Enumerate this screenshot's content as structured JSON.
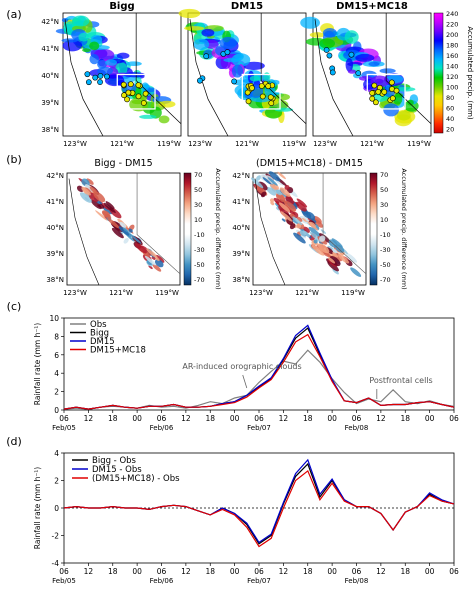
{
  "chart_data": [
    {
      "panel": "(a)",
      "type": "heatmap",
      "map_titles": [
        "Bigg",
        "DM15",
        "DM15+MC18"
      ],
      "lat_ticks": [
        "42°N",
        "41°N",
        "40°N",
        "39°N",
        "38°N"
      ],
      "lon_ticks": [
        "123°W",
        "121°W",
        "119°W"
      ],
      "colorbar": {
        "label": "Accumulated precip. (mm)",
        "ticks": [
          "240",
          "220",
          "200",
          "180",
          "160",
          "140",
          "120",
          "100",
          "80",
          "60",
          "40",
          "20"
        ],
        "colors": [
          "#ff00ff",
          "#c000ff",
          "#6a00ff",
          "#0000ff",
          "#0066ff",
          "#00b3ff",
          "#00e5c0",
          "#00c800",
          "#6ad000",
          "#e6e600",
          "#ffcc00",
          "#ff7f00",
          "#ff2a00",
          "#cc0000"
        ]
      }
    },
    {
      "panel": "(b)",
      "type": "heatmap",
      "map_titles": [
        "Bigg - DM15",
        "(DM15+MC18) - DM15"
      ],
      "lat_ticks": [
        "42°N",
        "41°N",
        "40°N",
        "39°N",
        "38°N"
      ],
      "lon_ticks": [
        "123°W",
        "121°W",
        "119°W"
      ],
      "colorbar": {
        "label": "Accumulated precip. difference (mm)",
        "ticks": [
          "70",
          "50",
          "30",
          "10",
          "-10",
          "-30",
          "-50",
          "-70"
        ],
        "colors": [
          "#67001f",
          "#b2182b",
          "#d6604d",
          "#f4a582",
          "#fddbc7",
          "#ffffff",
          "#ffffff",
          "#d1e5f0",
          "#92c5de",
          "#4393c3",
          "#2166ac",
          "#053061"
        ]
      }
    },
    {
      "panel": "(c)",
      "type": "line",
      "ylabel": "Rainfall rate (mm h⁻¹)",
      "ylim": [
        0,
        10
      ],
      "yticks": [
        "0",
        "2",
        "4",
        "6",
        "8",
        "10"
      ],
      "x_ticks": [
        "06",
        "12",
        "18",
        "00",
        "06",
        "12",
        "18",
        "00",
        "06",
        "12",
        "18",
        "00",
        "06",
        "12",
        "18",
        "00",
        "06"
      ],
      "x_dates": [
        "Feb/05",
        "Feb/06",
        "Feb/07",
        "Feb/08"
      ],
      "x": [
        0,
        3,
        6,
        9,
        12,
        15,
        18,
        21,
        24,
        27,
        30,
        33,
        36,
        39,
        42,
        45,
        48,
        51,
        54,
        57,
        60,
        63,
        66,
        69,
        72,
        75,
        78,
        81,
        84,
        87,
        90,
        93,
        96
      ],
      "series": [
        {
          "name": "Obs",
          "color": "#808080",
          "values": [
            0.1,
            0.2,
            0.1,
            0.3,
            0.4,
            0.3,
            0.2,
            0.5,
            0.3,
            0.4,
            0.2,
            0.5,
            0.9,
            0.7,
            1.3,
            1.6,
            3.0,
            4.2,
            5.3,
            5.0,
            6.5,
            5.2,
            3.4,
            1.9,
            0.7,
            1.2,
            0.9,
            2.2,
            0.9,
            0.7,
            1.0,
            0.6,
            0.4
          ]
        },
        {
          "name": "Bigg",
          "color": "#000000",
          "values": [
            0.1,
            0.3,
            0.1,
            0.3,
            0.5,
            0.3,
            0.2,
            0.4,
            0.4,
            0.6,
            0.3,
            0.3,
            0.4,
            0.7,
            0.9,
            1.6,
            2.5,
            3.4,
            5.5,
            7.8,
            8.9,
            6.0,
            3.2,
            1.0,
            0.8,
            1.3,
            0.5,
            0.6,
            0.6,
            0.8,
            0.9,
            0.6,
            0.3
          ]
        },
        {
          "name": "DM15",
          "color": "#0000cc",
          "values": [
            0.1,
            0.3,
            0.1,
            0.3,
            0.5,
            0.3,
            0.2,
            0.4,
            0.4,
            0.6,
            0.3,
            0.3,
            0.4,
            0.7,
            0.9,
            1.6,
            2.6,
            3.5,
            5.6,
            8.1,
            9.2,
            6.2,
            3.3,
            1.0,
            0.8,
            1.3,
            0.5,
            0.6,
            0.6,
            0.8,
            0.9,
            0.6,
            0.3
          ]
        },
        {
          "name": "DM15+MC18",
          "color": "#e00000",
          "values": [
            0.1,
            0.3,
            0.1,
            0.3,
            0.5,
            0.3,
            0.2,
            0.4,
            0.4,
            0.6,
            0.3,
            0.3,
            0.4,
            0.6,
            0.8,
            1.4,
            2.4,
            3.3,
            5.2,
            7.4,
            8.2,
            5.8,
            3.1,
            1.0,
            0.8,
            1.3,
            0.5,
            0.6,
            0.6,
            0.8,
            0.9,
            0.6,
            0.3
          ]
        }
      ],
      "annotations": [
        "AR-induced orographic clouds",
        "Postfrontal cells"
      ]
    },
    {
      "panel": "(d)",
      "type": "line",
      "ylabel": "Rainfall rate (mm h⁻¹)",
      "ylim": [
        -4,
        4
      ],
      "yticks": [
        "-4",
        "-2",
        "0",
        "2",
        "4"
      ],
      "x_ticks": [
        "06",
        "12",
        "18",
        "00",
        "06",
        "12",
        "18",
        "00",
        "06",
        "12",
        "18",
        "00",
        "06",
        "12",
        "18",
        "00",
        "06"
      ],
      "x_dates": [
        "Feb/05",
        "Feb/06",
        "Feb/07",
        "Feb/08"
      ],
      "x": [
        0,
        3,
        6,
        9,
        12,
        15,
        18,
        21,
        24,
        27,
        30,
        33,
        36,
        39,
        42,
        45,
        48,
        51,
        54,
        57,
        60,
        63,
        66,
        69,
        72,
        75,
        78,
        81,
        84,
        87,
        90,
        93,
        96
      ],
      "series": [
        {
          "name": "Bigg - Obs",
          "color": "#000000",
          "values": [
            0.0,
            0.1,
            0.0,
            0.0,
            0.1,
            0.0,
            0.0,
            -0.1,
            0.1,
            0.2,
            0.1,
            -0.2,
            -0.5,
            0.0,
            -0.4,
            -1.2,
            -2.6,
            -2.0,
            0.3,
            2.3,
            3.2,
            0.8,
            2.0,
            0.6,
            0.1,
            0.1,
            -0.4,
            -1.6,
            -0.3,
            0.1,
            1.0,
            0.5,
            0.3
          ]
        },
        {
          "name": "DM15 - Obs",
          "color": "#0000cc",
          "values": [
            0.0,
            0.1,
            0.0,
            0.0,
            0.1,
            0.0,
            0.0,
            -0.1,
            0.1,
            0.2,
            0.1,
            -0.2,
            -0.5,
            0.0,
            -0.4,
            -1.1,
            -2.5,
            -1.9,
            0.4,
            2.5,
            3.5,
            1.0,
            2.1,
            0.6,
            0.1,
            0.1,
            -0.4,
            -1.6,
            -0.3,
            0.1,
            1.1,
            0.6,
            0.3
          ]
        },
        {
          "name": "(DM15+MC18) - Obs",
          "color": "#e00000",
          "values": [
            0.0,
            0.1,
            0.0,
            0.0,
            0.1,
            0.0,
            0.0,
            -0.1,
            0.1,
            0.2,
            0.1,
            -0.2,
            -0.5,
            -0.1,
            -0.5,
            -1.4,
            -2.8,
            -2.2,
            0.0,
            2.0,
            2.7,
            0.6,
            1.8,
            0.5,
            0.1,
            0.1,
            -0.4,
            -1.6,
            -0.3,
            0.1,
            0.9,
            0.5,
            0.3
          ]
        }
      ]
    }
  ]
}
